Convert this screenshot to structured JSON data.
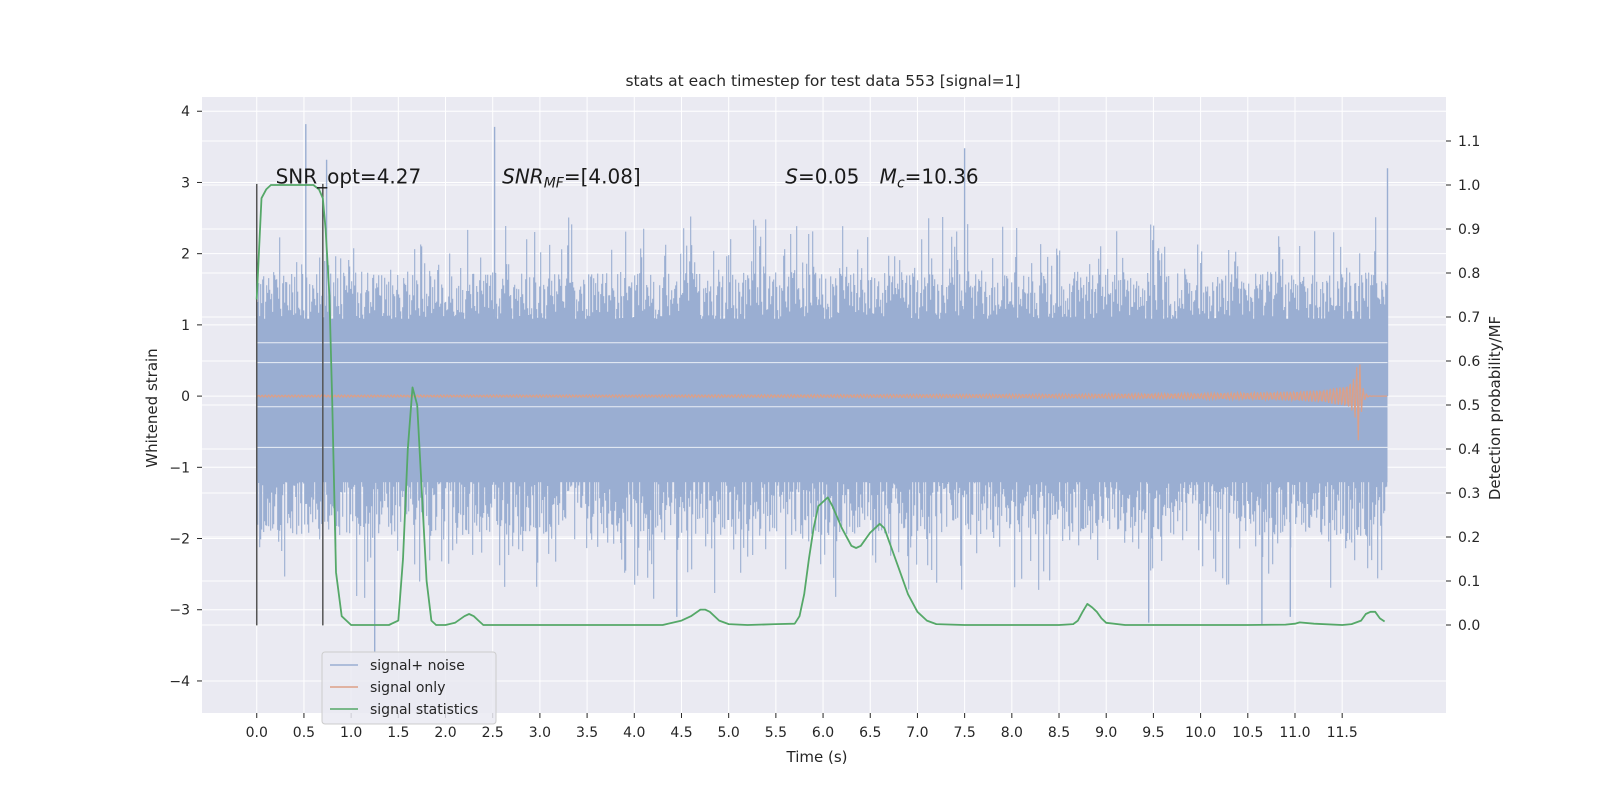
{
  "chart_data": {
    "type": "line",
    "title": "stats at each timestep for test data 553 [signal=1]",
    "xlabel": "Time (s)",
    "ylabel": "Whitened strain",
    "y2label": "Detection probability/MF",
    "xlim": [
      -0.58,
      12.6
    ],
    "ylim": [
      -4.45,
      4.2
    ],
    "y2lim": [
      -0.2,
      1.2
    ],
    "x_ticks": [
      0.0,
      0.5,
      1.0,
      1.5,
      2.0,
      2.5,
      3.0,
      3.5,
      4.0,
      4.5,
      5.0,
      5.5,
      6.0,
      6.5,
      7.0,
      7.5,
      8.0,
      8.5,
      9.0,
      9.5,
      10.0,
      10.5,
      11.0,
      11.5
    ],
    "x_tick_labels": [
      "0.0",
      "0.5",
      "1.0",
      "1.5",
      "2.0",
      "2.5",
      "3.0",
      "3.5",
      "4.0",
      "4.5",
      "5.0",
      "5.5",
      "6.0",
      "6.5",
      "7.0",
      "7.5",
      "8.0",
      "8.5",
      "9.0",
      "9.5",
      "10.0",
      "10.5",
      "11.0",
      "11.5"
    ],
    "y_ticks": [
      -4,
      -3,
      -2,
      -1,
      0,
      1,
      2,
      3,
      4
    ],
    "y_tick_labels": [
      "−4",
      "−3",
      "−2",
      "−1",
      "0",
      "1",
      "2",
      "3",
      "4"
    ],
    "y2_ticks": [
      0.0,
      0.1,
      0.2,
      0.3,
      0.4,
      0.5,
      0.6,
      0.7,
      0.8,
      0.9,
      1.0,
      1.1
    ],
    "y2_tick_labels": [
      "0.0",
      "0.1",
      "0.2",
      "0.3",
      "0.4",
      "0.5",
      "0.6",
      "0.7",
      "0.8",
      "0.9",
      "1.0",
      "1.1"
    ],
    "grid": true,
    "legend_position": "bottom-left",
    "colors": {
      "background": "#eaeaf2",
      "grid": "#ffffff",
      "noise": "#9aaed2",
      "signal": "#dd9f86",
      "stats": "#55a868",
      "vline": "#555555"
    },
    "series": [
      {
        "name": "signal+ noise",
        "axis": "left",
        "kind": "noise-band",
        "x_range": [
          0.0,
          11.98
        ],
        "typical_max": 1.75,
        "typical_min": -1.95,
        "peaks": [
          [
            0.52,
            3.82
          ],
          [
            0.74,
            3.32
          ],
          [
            2.52,
            3.78
          ],
          [
            7.5,
            3.48
          ],
          [
            11.98,
            3.2
          ],
          [
            1.25,
            -3.6
          ],
          [
            4.45,
            -3.1
          ],
          [
            9.45,
            -3.18
          ],
          [
            10.65,
            -3.22
          ],
          [
            10.95,
            -3.1
          ]
        ]
      },
      {
        "name": "signal only",
        "axis": "left",
        "kind": "chirp",
        "x_range": [
          0.0,
          11.98
        ],
        "merger_time": 11.68,
        "peak_amplitude": 0.62
      },
      {
        "name": "signal statistics",
        "axis": "right",
        "x": [
          0.0,
          0.05,
          0.1,
          0.15,
          0.2,
          0.3,
          0.4,
          0.5,
          0.6,
          0.66,
          0.7,
          0.73,
          0.77,
          0.8,
          0.84,
          0.9,
          1.0,
          1.2,
          1.4,
          1.5,
          1.55,
          1.6,
          1.65,
          1.7,
          1.75,
          1.8,
          1.85,
          1.9,
          2.0,
          2.1,
          2.2,
          2.25,
          2.3,
          2.35,
          2.4,
          2.5,
          3.0,
          3.5,
          4.0,
          4.3,
          4.5,
          4.6,
          4.7,
          4.75,
          4.8,
          4.9,
          5.0,
          5.2,
          5.5,
          5.7,
          5.75,
          5.8,
          5.85,
          5.9,
          5.95,
          6.05,
          6.1,
          6.2,
          6.3,
          6.35,
          6.4,
          6.5,
          6.6,
          6.65,
          6.7,
          6.8,
          6.9,
          7.0,
          7.1,
          7.2,
          7.5,
          8.0,
          8.5,
          8.65,
          8.7,
          8.75,
          8.8,
          8.85,
          8.9,
          8.95,
          9.0,
          9.2,
          9.5,
          10.0,
          10.5,
          10.9,
          11.0,
          11.05,
          11.2,
          11.5,
          11.6,
          11.7,
          11.75,
          11.8,
          11.85,
          11.9,
          11.95
        ],
        "y": [
          0.74,
          0.97,
          0.99,
          1.0,
          1.0,
          1.0,
          1.0,
          1.0,
          1.0,
          0.99,
          0.97,
          0.9,
          0.75,
          0.5,
          0.12,
          0.02,
          0.0,
          0.0,
          0.0,
          0.01,
          0.15,
          0.4,
          0.54,
          0.5,
          0.3,
          0.1,
          0.01,
          0.0,
          0.0,
          0.005,
          0.02,
          0.025,
          0.02,
          0.01,
          0.0,
          0.0,
          0.0,
          0.0,
          0.0,
          0.0,
          0.01,
          0.02,
          0.035,
          0.035,
          0.03,
          0.01,
          0.002,
          0.0,
          0.002,
          0.003,
          0.02,
          0.07,
          0.15,
          0.22,
          0.27,
          0.29,
          0.27,
          0.22,
          0.18,
          0.175,
          0.18,
          0.21,
          0.23,
          0.22,
          0.19,
          0.13,
          0.07,
          0.03,
          0.01,
          0.002,
          0.0,
          0.0,
          0.0,
          0.002,
          0.01,
          0.03,
          0.048,
          0.04,
          0.03,
          0.015,
          0.005,
          0.0,
          0.0,
          0.0,
          0.0,
          0.001,
          0.003,
          0.006,
          0.003,
          0.0,
          0.002,
          0.01,
          0.025,
          0.03,
          0.03,
          0.015,
          0.008
        ]
      }
    ],
    "vlines": [
      {
        "x": 0.0,
        "ymin": -3.22,
        "ymax": 2.98
      },
      {
        "x": 0.7,
        "ymin": -3.22,
        "ymax": 2.98
      }
    ],
    "annotations": [
      {
        "x": 0.2,
        "y": 3.1,
        "text": "SNR_opt=4.27"
      },
      {
        "x": 2.6,
        "y": 3.1,
        "math": "SNR_MF",
        "text": "=[4.08]"
      },
      {
        "x": 5.6,
        "y": 3.1,
        "math": "S",
        "text": "=0.05"
      },
      {
        "x": 6.6,
        "y": 3.1,
        "math": "M_c",
        "text": "=10.36"
      }
    ]
  }
}
